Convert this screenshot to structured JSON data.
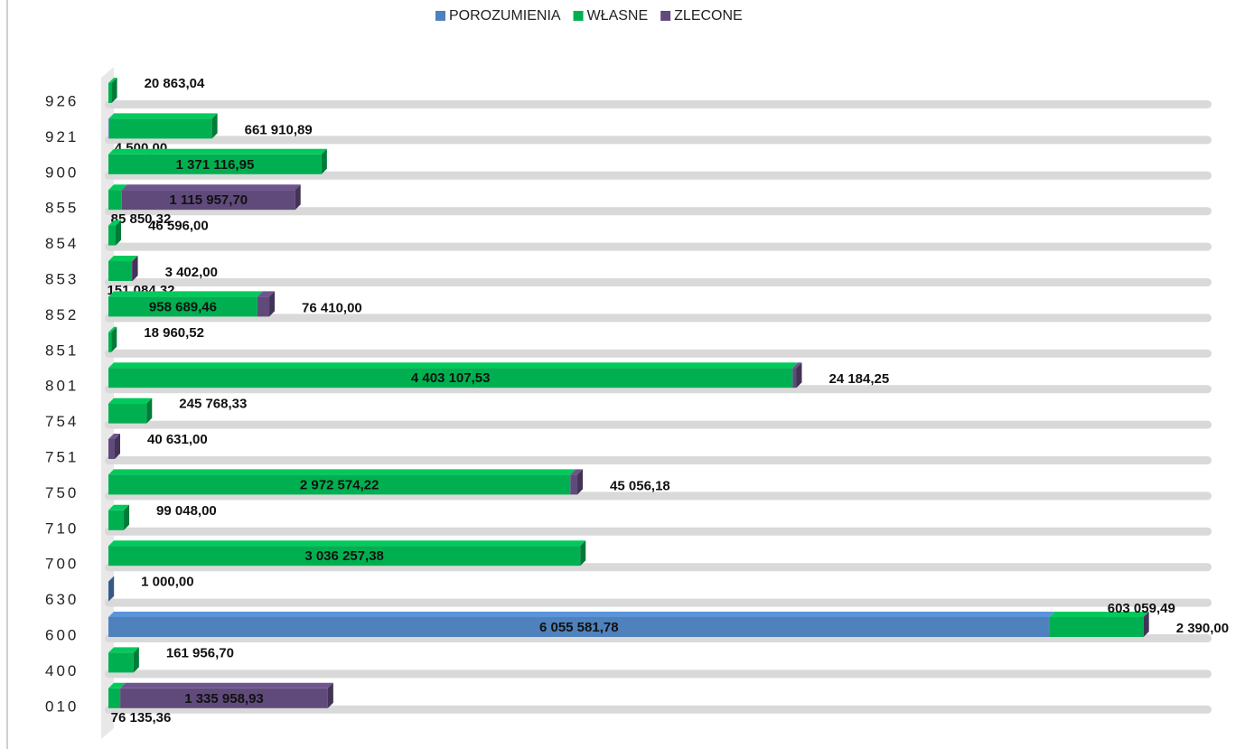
{
  "chart_data": {
    "type": "bar",
    "orientation": "horizontal",
    "stacked": true,
    "legend": "top",
    "categories": [
      "926",
      "921",
      "900",
      "855",
      "854",
      "853",
      "852",
      "851",
      "801",
      "754",
      "751",
      "750",
      "710",
      "700",
      "630",
      "600",
      "400",
      "010"
    ],
    "series": [
      {
        "name": "POROZUMIENIA",
        "color": "#4f81bd",
        "values": [
          null,
          4500.0,
          null,
          null,
          null,
          null,
          null,
          null,
          null,
          null,
          null,
          null,
          null,
          null,
          1000.0,
          6055581.78,
          null,
          null
        ],
        "value_labels": [
          null,
          "4 500,00",
          null,
          null,
          null,
          null,
          null,
          null,
          null,
          null,
          null,
          null,
          null,
          null,
          "1 000,00",
          "6 055 581,78",
          null,
          null
        ]
      },
      {
        "name": "WŁASNE",
        "color": "#00b050",
        "values": [
          20863.04,
          661910.89,
          1371116.95,
          85850.32,
          46596.0,
          151084.32,
          958689.46,
          18960.52,
          4403107.53,
          245768.33,
          null,
          2972574.22,
          99048.0,
          3036257.38,
          null,
          603059.49,
          161956.7,
          76135.36
        ],
        "value_labels": [
          "20 863,04",
          "661 910,89",
          "1 371 116,95",
          "85 850,32",
          "46 596,00",
          "151 084,32",
          "958 689,46",
          "18 960,52",
          "4 403 107,53",
          "245 768,33",
          null,
          "2 972 574,22",
          "99 048,00",
          "3 036 257,38",
          null,
          "603 059,49",
          "161 956,70",
          "76 135,36"
        ]
      },
      {
        "name": "ZLECONE",
        "color": "#604a7b",
        "values": [
          null,
          null,
          null,
          1115957.7,
          null,
          3402.0,
          76410.0,
          null,
          24184.25,
          null,
          40631.0,
          45056.18,
          null,
          null,
          null,
          2390.0,
          null,
          1335958.93
        ],
        "value_labels": [
          null,
          null,
          null,
          "1 115 957,70",
          null,
          "3 402,00",
          "76 410,00",
          null,
          "24 184,25",
          null,
          "40 631,00",
          "45 056,18",
          null,
          null,
          null,
          "2 390,00",
          null,
          "1 335 958,93"
        ]
      }
    ],
    "xlim": [
      0,
      7000000
    ]
  }
}
